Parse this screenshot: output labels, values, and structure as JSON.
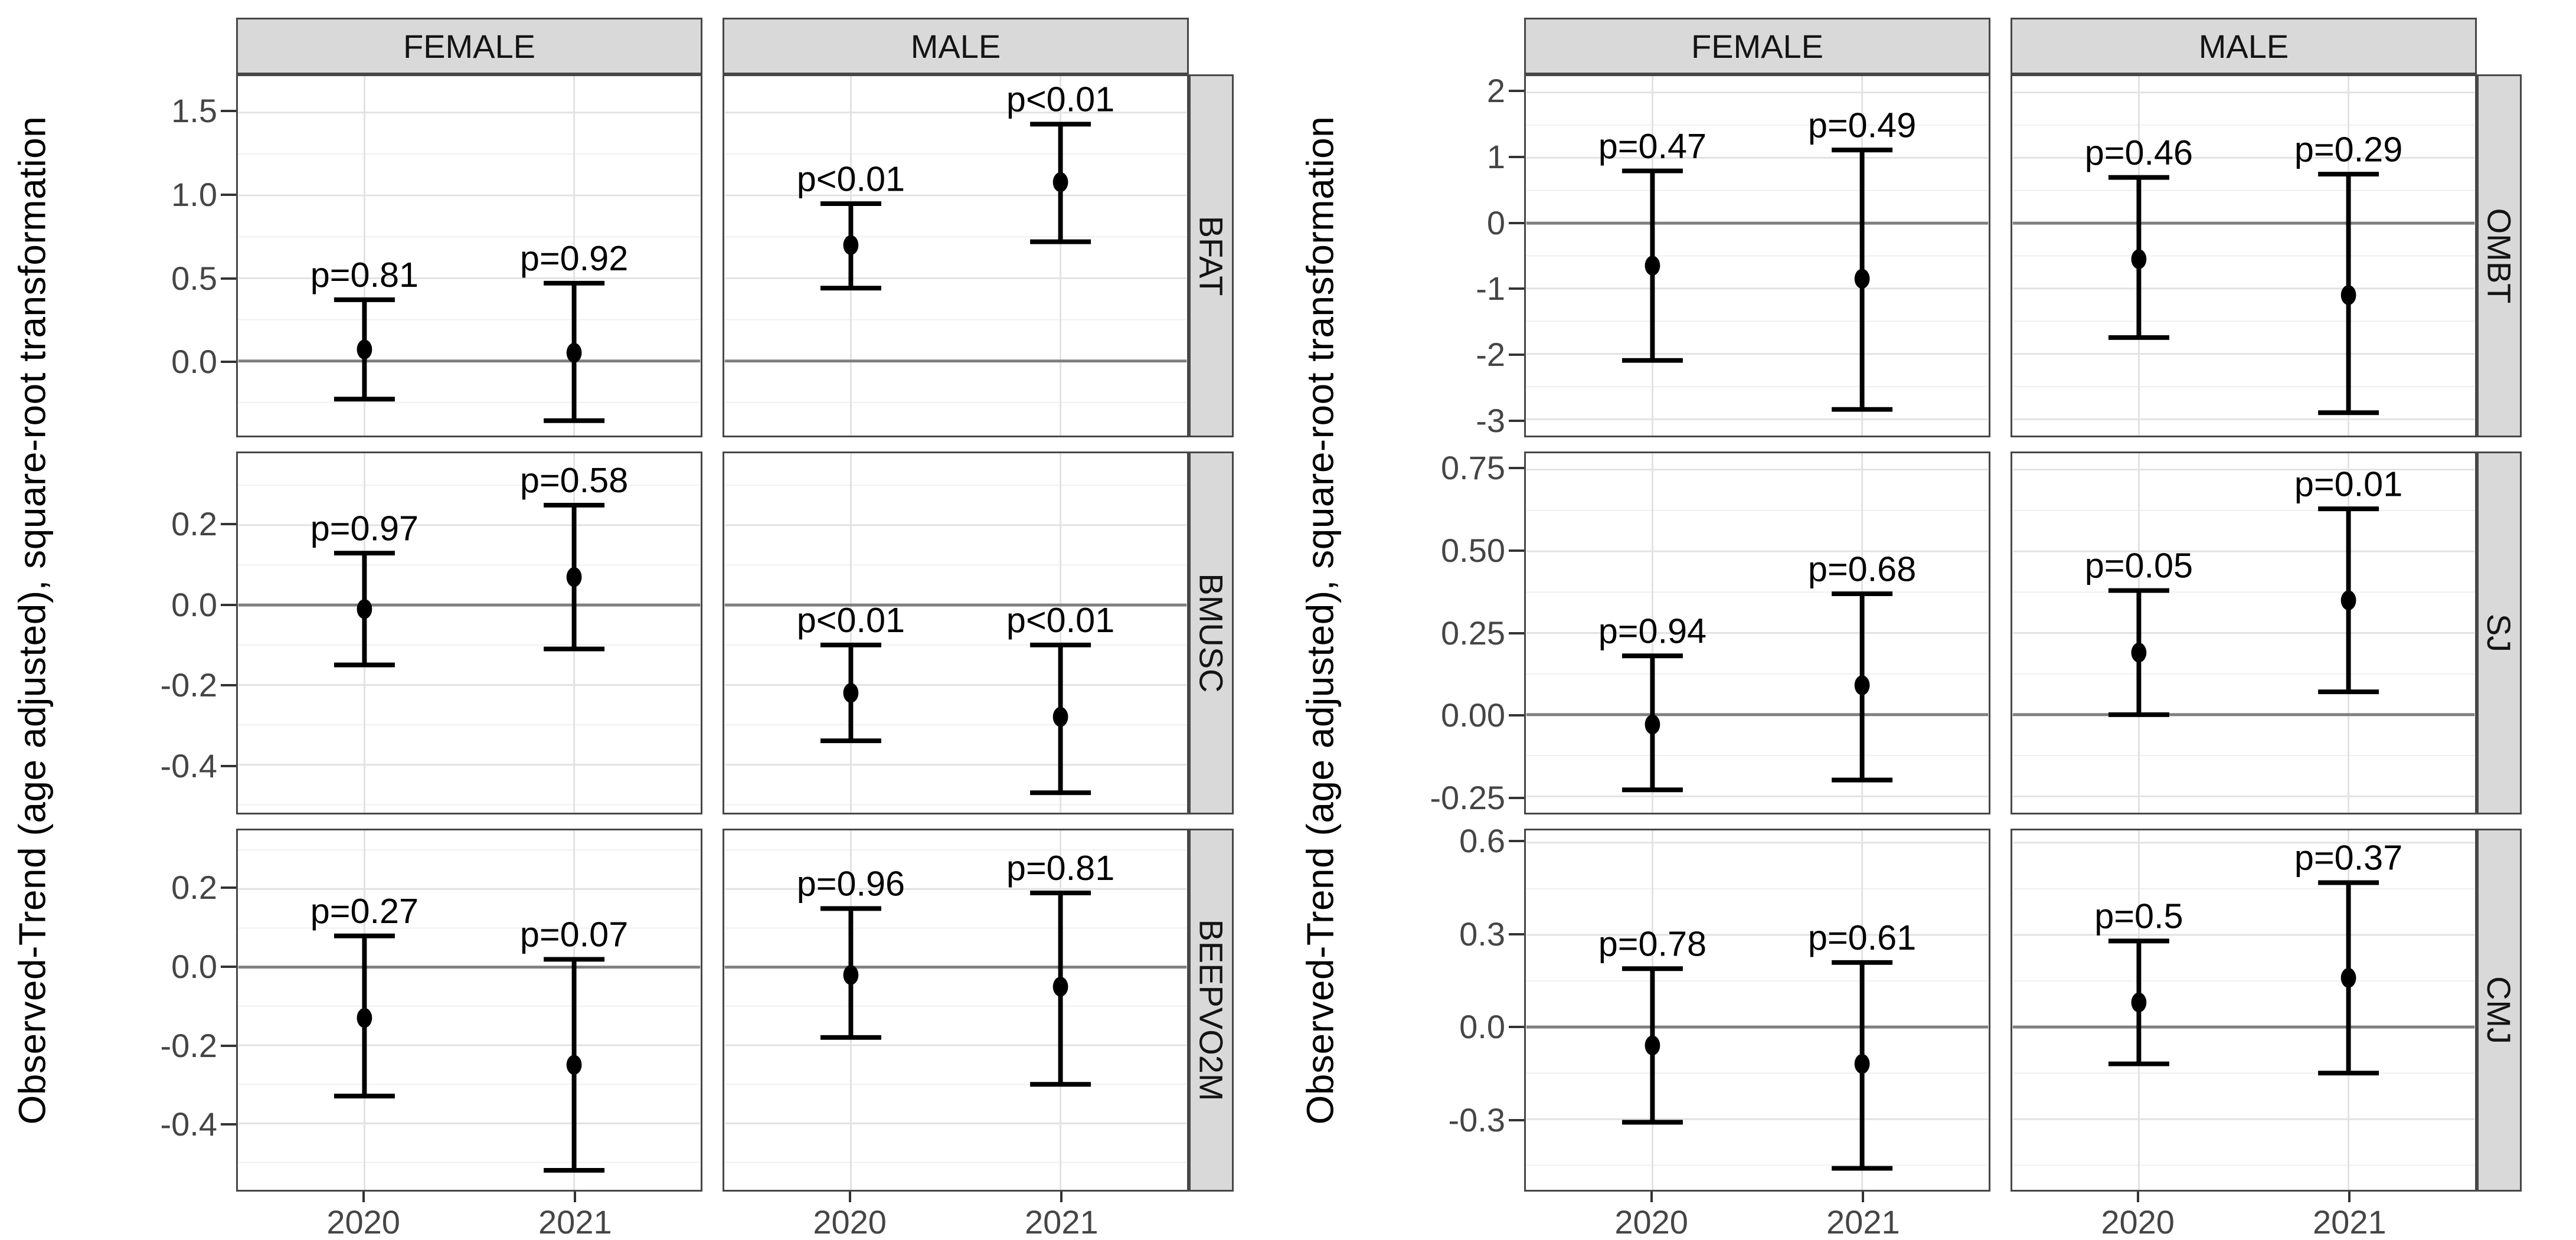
{
  "style": {
    "background": "#ffffff",
    "strip_bg": "#d9d9d9",
    "strip_border": "#474747",
    "strip_text": "#141414",
    "panel_border": "#474747",
    "grid_major": "#e2e2e2",
    "grid_minor": "#f0f0f0",
    "zero_line": "#7f7f7f",
    "point_color": "#000000",
    "errorbar_color": "#000000",
    "p_label_color": "#000000",
    "tick_mark_color": "#333333",
    "tick_label_color": "#454545",
    "axis_title_color": "#000000"
  },
  "chart_data": [
    {
      "type": "pointrange",
      "ylabel": "Observed-Trend (age adjusted), square-root transformation",
      "col_facets": [
        "FEMALE",
        "MALE"
      ],
      "x_categories": [
        "2020",
        "2021"
      ],
      "legend": "none",
      "grid": "on",
      "rows": [
        {
          "facet": "BFAT",
          "ylim": [
            -0.45,
            1.72
          ],
          "yticks": [
            1.5,
            1.0,
            0.5,
            0.0
          ],
          "ytick_labels": [
            "1.5",
            "1.0",
            "0.5",
            "0.0"
          ],
          "panels": [
            {
              "col": "FEMALE",
              "points": [
                {
                  "x": "2020",
                  "y": 0.07,
                  "lo": -0.23,
                  "hi": 0.37,
                  "p": "p=0.81"
                },
                {
                  "x": "2021",
                  "y": 0.05,
                  "lo": -0.36,
                  "hi": 0.47,
                  "p": "p=0.92"
                }
              ]
            },
            {
              "col": "MALE",
              "points": [
                {
                  "x": "2020",
                  "y": 0.7,
                  "lo": 0.44,
                  "hi": 0.95,
                  "p": "p<0.01"
                },
                {
                  "x": "2021",
                  "y": 1.08,
                  "lo": 0.72,
                  "hi": 1.43,
                  "p": "p<0.01"
                }
              ]
            }
          ]
        },
        {
          "facet": "BMUSC",
          "ylim": [
            -0.52,
            0.38
          ],
          "yticks": [
            0.2,
            0.0,
            -0.2,
            -0.4
          ],
          "ytick_labels": [
            "0.2",
            "0.0",
            "-0.2",
            "-0.4"
          ],
          "panels": [
            {
              "col": "FEMALE",
              "points": [
                {
                  "x": "2020",
                  "y": -0.01,
                  "lo": -0.15,
                  "hi": 0.13,
                  "p": "p=0.97"
                },
                {
                  "x": "2021",
                  "y": 0.07,
                  "lo": -0.11,
                  "hi": 0.25,
                  "p": "p=0.58"
                }
              ]
            },
            {
              "col": "MALE",
              "points": [
                {
                  "x": "2020",
                  "y": -0.22,
                  "lo": -0.34,
                  "hi": -0.1,
                  "p": "p<0.01"
                },
                {
                  "x": "2021",
                  "y": -0.28,
                  "lo": -0.47,
                  "hi": -0.1,
                  "p": "p<0.01"
                }
              ]
            }
          ]
        },
        {
          "facet": "BEEPVO2M",
          "ylim": [
            -0.57,
            0.35
          ],
          "yticks": [
            0.2,
            0.0,
            -0.2,
            -0.4
          ],
          "ytick_labels": [
            "0.2",
            "0.0",
            "-0.2",
            "-0.4"
          ],
          "panels": [
            {
              "col": "FEMALE",
              "points": [
                {
                  "x": "2020",
                  "y": -0.13,
                  "lo": -0.33,
                  "hi": 0.08,
                  "p": "p=0.27"
                },
                {
                  "x": "2021",
                  "y": -0.25,
                  "lo": -0.52,
                  "hi": 0.02,
                  "p": "p=0.07"
                }
              ]
            },
            {
              "col": "MALE",
              "points": [
                {
                  "x": "2020",
                  "y": -0.02,
                  "lo": -0.18,
                  "hi": 0.15,
                  "p": "p=0.96"
                },
                {
                  "x": "2021",
                  "y": -0.05,
                  "lo": -0.3,
                  "hi": 0.19,
                  "p": "p=0.81"
                }
              ]
            }
          ]
        }
      ]
    },
    {
      "type": "pointrange",
      "ylabel": "Observed-Trend (age adjusted), square-root transformation",
      "col_facets": [
        "FEMALE",
        "MALE"
      ],
      "x_categories": [
        "2020",
        "2021"
      ],
      "legend": "none",
      "grid": "on",
      "rows": [
        {
          "facet": "OMBT",
          "ylim": [
            -3.25,
            2.25
          ],
          "yticks": [
            2,
            1,
            0,
            -1,
            -2,
            -3
          ],
          "ytick_labels": [
            "2",
            "1",
            "0",
            "-1",
            "-2",
            "-3"
          ],
          "panels": [
            {
              "col": "FEMALE",
              "points": [
                {
                  "x": "2020",
                  "y": -0.65,
                  "lo": -2.1,
                  "hi": 0.8,
                  "p": "p=0.47"
                },
                {
                  "x": "2021",
                  "y": -0.85,
                  "lo": -2.85,
                  "hi": 1.12,
                  "p": "p=0.49"
                }
              ]
            },
            {
              "col": "MALE",
              "points": [
                {
                  "x": "2020",
                  "y": -0.55,
                  "lo": -1.75,
                  "hi": 0.7,
                  "p": "p=0.46"
                },
                {
                  "x": "2021",
                  "y": -1.1,
                  "lo": -2.9,
                  "hi": 0.75,
                  "p": "p=0.29"
                }
              ]
            }
          ]
        },
        {
          "facet": "SJ",
          "ylim": [
            -0.3,
            0.8
          ],
          "yticks": [
            0.75,
            0.5,
            0.25,
            0.0,
            -0.25
          ],
          "ytick_labels": [
            "0.75",
            "0.50",
            "0.25",
            "0.00",
            "-0.25"
          ],
          "panels": [
            {
              "col": "FEMALE",
              "points": [
                {
                  "x": "2020",
                  "y": -0.03,
                  "lo": -0.23,
                  "hi": 0.18,
                  "p": "p=0.94"
                },
                {
                  "x": "2021",
                  "y": 0.09,
                  "lo": -0.2,
                  "hi": 0.37,
                  "p": "p=0.68"
                }
              ]
            },
            {
              "col": "MALE",
              "points": [
                {
                  "x": "2020",
                  "y": 0.19,
                  "lo": 0.0,
                  "hi": 0.38,
                  "p": "p=0.05"
                },
                {
                  "x": "2021",
                  "y": 0.35,
                  "lo": 0.07,
                  "hi": 0.63,
                  "p": "p=0.01"
                }
              ]
            }
          ]
        },
        {
          "facet": "CMJ",
          "ylim": [
            -0.53,
            0.64
          ],
          "yticks": [
            0.6,
            0.3,
            0.0,
            -0.3
          ],
          "ytick_labels": [
            "0.6",
            "0.3",
            "0.0",
            "-0.3"
          ],
          "panels": [
            {
              "col": "FEMALE",
              "points": [
                {
                  "x": "2020",
                  "y": -0.06,
                  "lo": -0.31,
                  "hi": 0.19,
                  "p": "p=0.78"
                },
                {
                  "x": "2021",
                  "y": -0.12,
                  "lo": -0.46,
                  "hi": 0.21,
                  "p": "p=0.61"
                }
              ]
            },
            {
              "col": "MALE",
              "points": [
                {
                  "x": "2020",
                  "y": 0.08,
                  "lo": -0.12,
                  "hi": 0.28,
                  "p": "p=0.5"
                },
                {
                  "x": "2021",
                  "y": 0.16,
                  "lo": -0.15,
                  "hi": 0.47,
                  "p": "p=0.37"
                }
              ]
            }
          ]
        }
      ]
    }
  ]
}
